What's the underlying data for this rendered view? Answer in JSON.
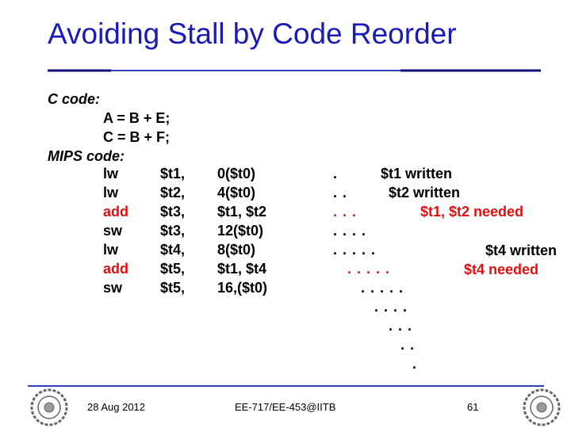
{
  "title": "Avoiding Stall by Code Reorder",
  "c_code": {
    "label": "C code:",
    "lines": [
      "A = B + E;",
      "C = B + F;"
    ]
  },
  "mips_code": {
    "label": "MIPS code:",
    "rows": [
      [
        "lw",
        "$t1,",
        "0($t0)"
      ],
      [
        "lw",
        "$t2,",
        "4($t0)"
      ],
      [
        "add",
        "$t3,",
        "$t1, $t2"
      ],
      [
        "sw",
        "$t3,",
        "12($t0)"
      ],
      [
        "lw",
        "$t4,",
        "8($t0)"
      ],
      [
        "add",
        "$t5,",
        "$t1, $t4"
      ],
      [
        "sw",
        "$t5,",
        "16,($t0)"
      ]
    ]
  },
  "pipeline_dots": [
    ".",
    ". .",
    ". . .",
    ". . . .",
    ". . . . .",
    ". . . . .",
    ". . . . .",
    ". . . .",
    ". . .",
    ". .",
    "."
  ],
  "annotations": [
    "$t1 written",
    "$t2 written",
    "$t1, $t2 needed",
    "$t4 written",
    "$t4 needed"
  ],
  "footer": {
    "date": "28 Aug 2012",
    "course": "EE-717/EE-453@IITB",
    "page": "61"
  }
}
